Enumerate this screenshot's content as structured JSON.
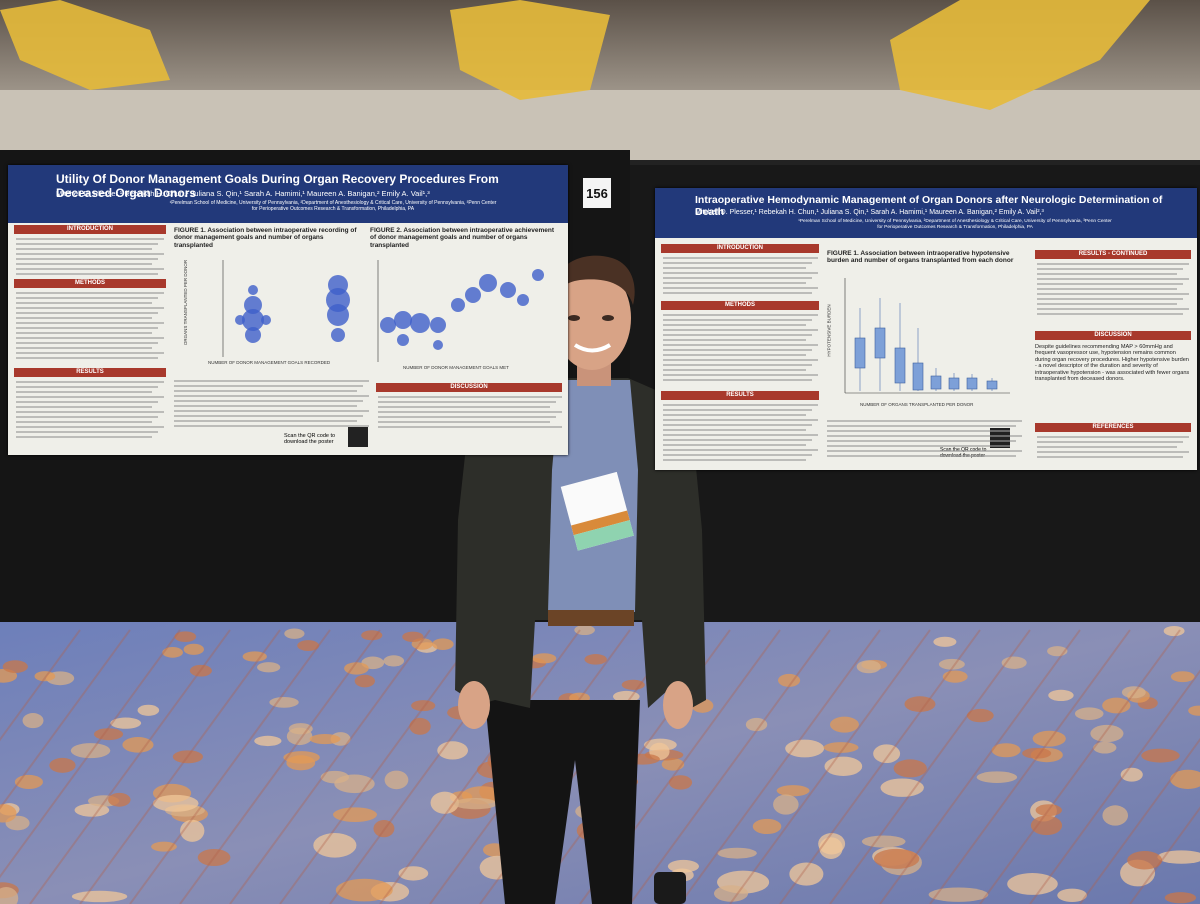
{
  "booth_number": "156",
  "posters": [
    {
      "title": "Utility Of Donor Management Goals During Organ Recovery Procedures From Deceased Organ Donors",
      "authors": "Mitchell D. Plesser,¹ Rebekah H. Chun,¹ Juliana S. Qin,¹ Sarah A. Hamimi,¹ Maureen A. Banigan,² Emily A. Vail¹,³",
      "affiliations": "¹Perelman School of Medicine, University of Pennsylvania, ²Department of Anesthesiology & Critical Care, University of Pennsylvania, ³Penn Center for Perioperative Outcomes Research & Transformation, Philadelphia, PA",
      "sections": [
        "INTRODUCTION",
        "METHODS",
        "RESULTS",
        "DISCUSSION"
      ],
      "figures": [
        "FIGURE 1. Association between intraoperative recording of donor management goals and number of organs transplanted",
        "FIGURE 2. Association between intraoperative achievement of donor management goals and number of organs transplanted"
      ],
      "axis_labels": [
        "NUMBER OF DONOR MANAGEMENT GOALS RECORDED",
        "NUMBER OF DONOR MANAGEMENT GOALS MET",
        "ORGANS TRANSPLANTED PER DONOR"
      ],
      "qr_note": "Scan the QR code to download the poster"
    },
    {
      "title": "Intraoperative Hemodynamic Management of Organ Donors after Neurologic Determination of Death",
      "authors": "Mitchell D. Plesser,¹ Rebekah H. Chun,¹ Juliana S. Qin,¹ Sarah A. Hamimi,¹ Maureen A. Banigan,² Emily A. Vail²,³",
      "affiliations": "¹Perelman School of Medicine, University of Pennsylvania, ²Department of Anesthesiology & Critical Care, University of Pennsylvania, ³Penn Center for Perioperative Outcomes Research & Transformation, Philadelphia, PA",
      "sections": [
        "INTRODUCTION",
        "METHODS",
        "RESULTS",
        "RESULTS - CONTINUED",
        "DISCUSSION",
        "REFERENCES"
      ],
      "figures": [
        "FIGURE 1. Association between intraoperative hypotensive burden and number of organs transplanted from each donor"
      ],
      "axis_labels": [
        "NUMBER OF ORGANS TRANSPLANTED PER DONOR",
        "HYPOTENSIVE BURDEN"
      ],
      "discussion": "Despite guidelines recommending MAP > 60mmHg and frequent vasopressor use, hypotension remains common during organ recovery procedures. Higher hypotensive burden - a novel descriptor of the duration and severity of intraoperative hypotension - was associated with fewer organs transplanted from deceased donors.",
      "qr_note": "Scan the QR code to download the poster"
    }
  ]
}
